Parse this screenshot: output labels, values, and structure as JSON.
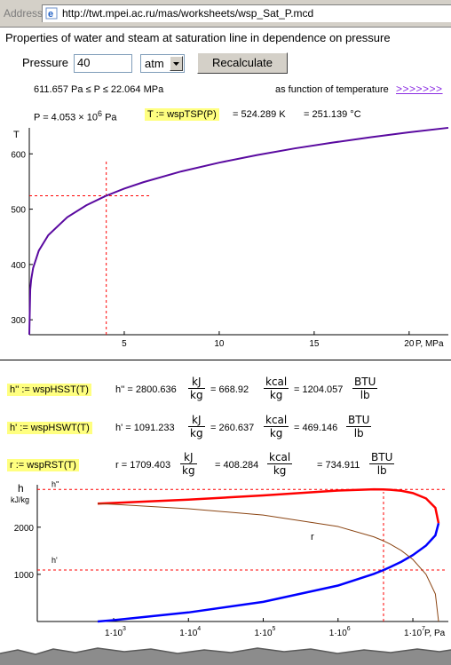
{
  "address_bar": {
    "label": "Address",
    "url": "http://twt.mpei.ac.ru/mas/worksheets/wsp_Sat_P.mcd"
  },
  "page": {
    "title": "Properties of water and steam at saturation line in dependence on pressure"
  },
  "form": {
    "pressure_label": "Pressure",
    "pressure_value": "40",
    "unit_selected": "atm",
    "recalculate_label": "Recalculate"
  },
  "range_text": "611.657 Pa ≤ P ≤ 22.064 MPa",
  "function_of_temperature": {
    "label": "as function of temperature",
    "link": ">>>>>>>"
  },
  "tsp": {
    "p_text": "P = 4.053 × 10",
    "p_exp": "6",
    "p_unit": "Pa",
    "formula": "T := wspTSP(P)",
    "result_k": "= 524.289 K",
    "result_c": "= 251.139 °C"
  },
  "enthalpy": {
    "hss": {
      "formula": "h'' := wspHSST(T)",
      "value": "h'' = 2800.636",
      "kcal": "= 668.92",
      "btu": "= 1204.057"
    },
    "hsw": {
      "formula": "h' := wspHSWT(T)",
      "value": "h' = 1091.233",
      "kcal": "= 260.637",
      "btu": "= 469.146"
    },
    "rst": {
      "formula": "r := wspRST(T)",
      "value": "r = 1709.403",
      "kcal": "= 408.284",
      "btu": "= 734.911"
    },
    "unit_kj": "kJ",
    "unit_kg": "kg",
    "unit_kcal": "kcal",
    "unit_btu": "BTU",
    "unit_lb": "lb"
  },
  "chart_data": [
    {
      "type": "line",
      "title": "",
      "ylabel": "T",
      "xlabel": "P, MPa",
      "x_ticks": [
        "5",
        "10",
        "15",
        "20"
      ],
      "y_ticks": [
        "300",
        "400",
        "500",
        "600"
      ],
      "xlim": [
        0,
        22.064
      ],
      "ylim": [
        273,
        647
      ],
      "series": [
        {
          "color": "#5a0aa0",
          "x": [
            0.000612,
            0.05,
            0.1,
            0.2,
            0.5,
            1,
            2,
            3,
            4,
            5,
            6,
            8,
            10,
            12,
            14,
            16,
            18,
            20,
            22.064
          ],
          "y": [
            273.16,
            354.5,
            372.8,
            393.4,
            425.0,
            453.0,
            485.5,
            507.0,
            523.5,
            537.1,
            548.7,
            568.2,
            584.1,
            597.8,
            610.0,
            620.5,
            630.1,
            638.9,
            647.1
          ]
        }
      ],
      "marker": {
        "x": 4.053,
        "y": 524.289
      }
    },
    {
      "type": "line",
      "title": "",
      "ylabel": "h",
      "y_unit": "kJ/kg",
      "xlabel": "P, Pa",
      "x_scale": "log",
      "x_ticks": [
        "1·10",
        "1·10",
        "1·10",
        "1·10",
        "1·10"
      ],
      "x_tick_exps": [
        "3",
        "4",
        "5",
        "6",
        "7"
      ],
      "y_ticks": [
        "1000",
        "2000"
      ],
      "xlim": [
        611.657,
        22064000
      ],
      "ylim": [
        0,
        2900
      ],
      "annotations": {
        "h2": "h''",
        "h1": "h'",
        "r": "r"
      },
      "series": [
        {
          "color": "#ff0000",
          "x": [
            611.657,
            1000,
            10000,
            100000,
            1000000,
            3000000,
            4000000,
            5000000,
            7000000,
            10000000,
            15000000,
            20000000,
            22064000
          ],
          "y": [
            2500.9,
            2514,
            2584,
            2675,
            2777,
            2804,
            2801,
            2794,
            2772,
            2724,
            2610,
            2410,
            2084
          ]
        },
        {
          "color": "#0000ff",
          "x": [
            611.657,
            1000,
            10000,
            100000,
            1000000,
            3000000,
            4000000,
            5000000,
            7000000,
            10000000,
            15000000,
            20000000,
            22064000
          ],
          "y": [
            0,
            29,
            192,
            417,
            763,
            1008,
            1087,
            1155,
            1267,
            1408,
            1611,
            1827,
            2084
          ]
        },
        {
          "color": "#8b4513",
          "x": [
            611.657,
            1000,
            10000,
            100000,
            1000000,
            3000000,
            4000000,
            5000000,
            7000000,
            10000000,
            15000000,
            20000000,
            22064000
          ],
          "y": [
            2500.9,
            2485,
            2392,
            2258,
            2014,
            1796,
            1714,
            1639,
            1505,
            1316,
            999,
            583,
            0
          ]
        }
      ],
      "marker": {
        "x": 4053000,
        "h2": 2800.636,
        "h1": 1091.233
      }
    }
  ]
}
